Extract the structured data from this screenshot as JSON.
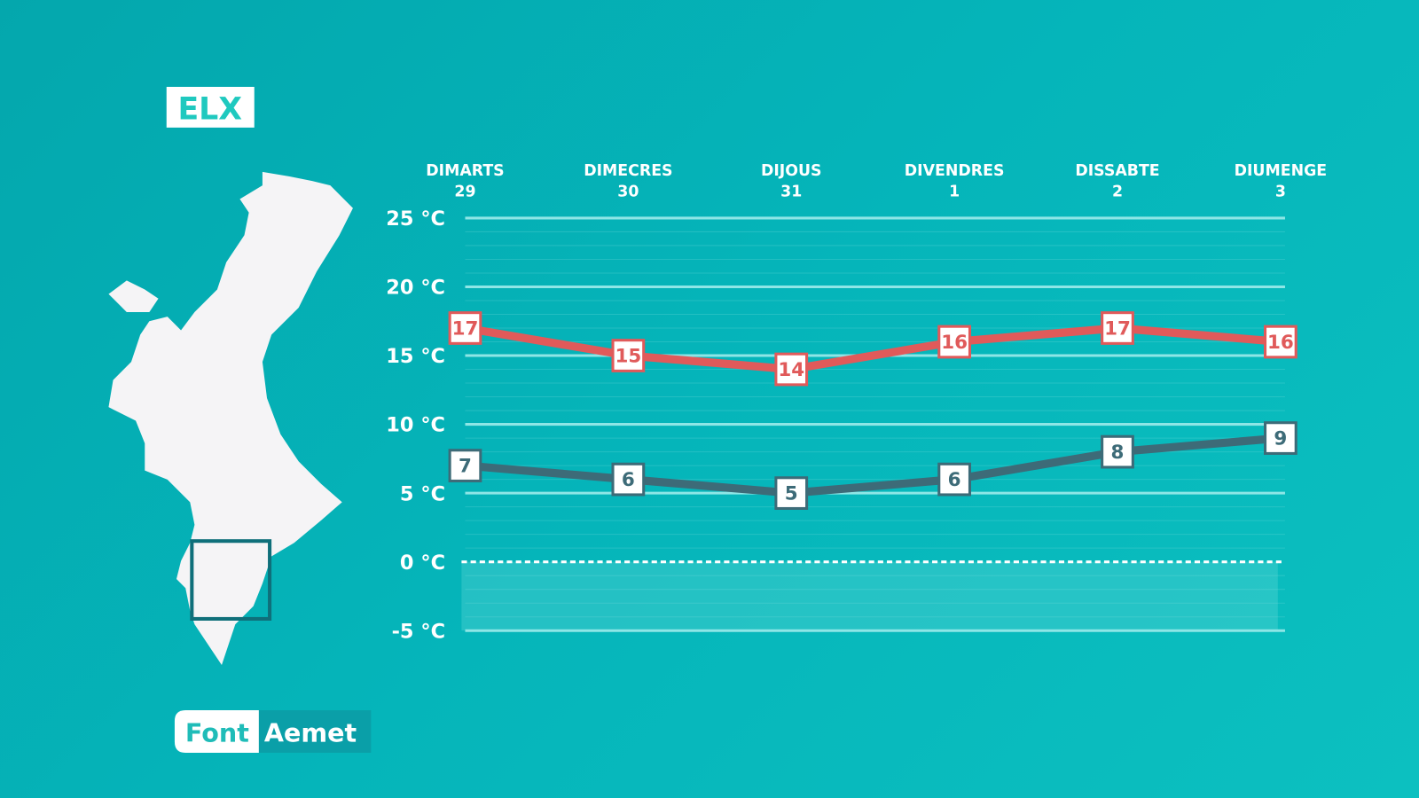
{
  "city": "ELX",
  "source": {
    "label": "Font",
    "name": "Aemet"
  },
  "colors": {
    "background": "#05b1b6",
    "max_line": "#e05a5a",
    "min_line": "#3d6b78",
    "map": "#f5f4f6",
    "highlight_box": "#0f6f7a"
  },
  "chart_data": {
    "type": "line",
    "categories": [
      {
        "day": "DIMARTS",
        "date": "29"
      },
      {
        "day": "DIMECRES",
        "date": "30"
      },
      {
        "day": "DIJOUS",
        "date": "31"
      },
      {
        "day": "DIVENDRES",
        "date": "1"
      },
      {
        "day": "DISSABTE",
        "date": "2"
      },
      {
        "day": "DIUMENGE",
        "date": "3"
      }
    ],
    "series": [
      {
        "values": [
          17,
          15,
          14,
          16,
          17,
          16
        ],
        "color": "#e05a5a"
      },
      {
        "values": [
          7,
          6,
          5,
          6,
          8,
          9
        ],
        "color": "#3d6b78"
      }
    ],
    "yticks": [
      {
        "value": 25,
        "label": "25 °C"
      },
      {
        "value": 20,
        "label": "20 °C"
      },
      {
        "value": 15,
        "label": "15 °C"
      },
      {
        "value": 10,
        "label": "10 °C"
      },
      {
        "value": 5,
        "label": "5 °C"
      },
      {
        "value": 0,
        "label": "0 °C"
      },
      {
        "value": -5,
        "label": "-5 °C"
      }
    ],
    "ylim": [
      -5,
      25
    ],
    "grid": true,
    "zero_line": "dashed"
  }
}
